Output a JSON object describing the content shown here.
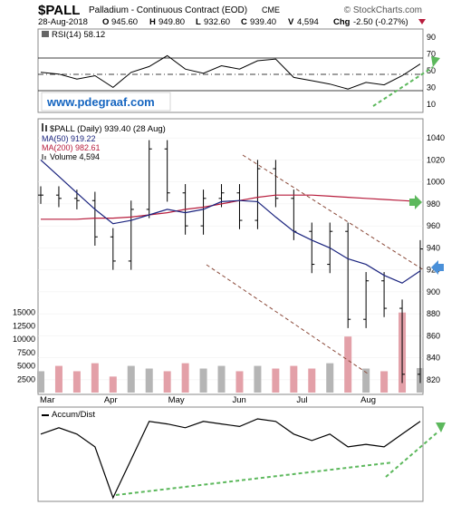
{
  "header": {
    "symbol": "$PALL",
    "name": "Palladium - Continuous Contract (EOD)",
    "exchange": "CME",
    "brand": "© StockCharts.com",
    "date": "28-Aug-2018",
    "open_label": "O",
    "open": "945.60",
    "high_label": "H",
    "high": "949.80",
    "low_label": "L",
    "low": "932.60",
    "close_label": "C",
    "close": "939.40",
    "volume_label": "V",
    "volume": "4,594",
    "change_label": "Chg",
    "change": "-2.50 (-0.27%)"
  },
  "watermark": "www.pdegraaf.com",
  "colors": {
    "price": "#000000",
    "ma50": "#1a237e",
    "ma200": "#b71c3c",
    "volume_up": "#b5b5b5",
    "volume_down": "#e3a0a8",
    "trendline": "#8b4a3a",
    "arrow_green": "#5cb85c",
    "arrow_blue": "#4a90d9",
    "watermark": "#1565c0"
  },
  "rsi_panel": {
    "title": "RSI(14) 58.12",
    "ticks": [
      "90",
      "70",
      "50",
      "30",
      "10"
    ]
  },
  "price_panel": {
    "title": "$PALL (Daily) 939.40 (28 Aug)",
    "legend": [
      {
        "label": "MA(50) 919.22",
        "color": "#1a237e"
      },
      {
        "label": "MA(200) 982.61",
        "color": "#b71c3c"
      },
      {
        "label": "Volume 4,594",
        "color": "#888888"
      }
    ],
    "price_ticks": [
      "1040",
      "1020",
      "1000",
      "980",
      "960",
      "940",
      "920",
      "900",
      "880",
      "860",
      "840",
      "820"
    ],
    "volume_ticks": [
      "15000",
      "12500",
      "10000",
      "7500",
      "5000",
      "2500"
    ],
    "months": [
      "Mar",
      "Apr",
      "May",
      "Jun",
      "Jul",
      "Aug"
    ]
  },
  "ad_panel": {
    "title": "Accum/Dist"
  },
  "chart_data": [
    {
      "type": "line",
      "name": "RSI",
      "title": "RSI(14) 58.12",
      "ylim": [
        0,
        100
      ],
      "levels": [
        70,
        50,
        30
      ],
      "x": [
        0,
        6,
        12,
        18,
        24,
        30,
        36,
        42,
        48,
        54,
        60,
        66,
        72,
        78,
        84,
        90,
        96,
        102,
        108,
        114,
        120,
        126
      ],
      "values": [
        48,
        46,
        40,
        44,
        30,
        48,
        55,
        68,
        52,
        47,
        56,
        52,
        62,
        64,
        42,
        38,
        34,
        28,
        36,
        33,
        44,
        58
      ]
    },
    {
      "type": "candlestick",
      "name": "$PALL (Daily)",
      "ylim": [
        810,
        1050
      ],
      "x": [
        0,
        6,
        12,
        18,
        24,
        30,
        36,
        42,
        48,
        54,
        60,
        66,
        72,
        78,
        84,
        90,
        96,
        102,
        108,
        114,
        120,
        126
      ],
      "close": [
        988,
        985,
        983,
        950,
        928,
        975,
        1030,
        990,
        960,
        985,
        990,
        965,
        1012,
        985,
        955,
        925,
        955,
        875,
        910,
        885,
        825,
        939
      ],
      "ma50": [
        1020,
        1005,
        990,
        975,
        962,
        965,
        970,
        975,
        972,
        975,
        982,
        983,
        982,
        968,
        955,
        947,
        940,
        930,
        925,
        915,
        908,
        919
      ],
      "ma200": [
        966,
        966,
        966,
        967,
        967,
        968,
        970,
        972,
        975,
        977,
        980,
        983,
        986,
        988,
        988,
        988,
        987,
        986,
        985,
        984,
        983,
        982
      ]
    },
    {
      "type": "bar",
      "name": "Volume",
      "ylim": [
        0,
        17500
      ],
      "x": [
        0,
        6,
        12,
        18,
        24,
        30,
        36,
        42,
        48,
        54,
        60,
        66,
        72,
        78,
        84,
        90,
        96,
        102,
        108,
        114,
        120,
        126
      ],
      "values": [
        4000,
        5000,
        4000,
        5500,
        3000,
        5000,
        4500,
        4000,
        5500,
        4500,
        5000,
        4000,
        5000,
        4500,
        5000,
        4500,
        5500,
        10500,
        4500,
        4000,
        15000,
        4594
      ]
    },
    {
      "type": "line",
      "name": "Accum/Dist",
      "title": "Accum/Dist",
      "x": [
        0,
        6,
        12,
        18,
        24,
        30,
        36,
        42,
        48,
        54,
        60,
        66,
        72,
        78,
        84,
        90,
        96,
        102,
        108,
        114,
        120,
        126
      ],
      "values": [
        70,
        75,
        70,
        60,
        20,
        50,
        80,
        78,
        75,
        80,
        78,
        76,
        82,
        80,
        70,
        65,
        70,
        60,
        62,
        60,
        70,
        80
      ]
    }
  ]
}
